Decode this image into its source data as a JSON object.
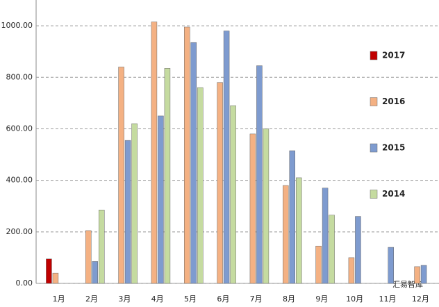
{
  "chart_data": {
    "type": "bar",
    "categories": [
      "1月",
      "2月",
      "3月",
      "4月",
      "5月",
      "6月",
      "7月",
      "8月",
      "9月",
      "10月",
      "11月",
      "12月"
    ],
    "series": [
      {
        "name": "2017",
        "color": "#c00000",
        "values": [
          95,
          null,
          null,
          null,
          null,
          null,
          null,
          null,
          null,
          null,
          null,
          null
        ]
      },
      {
        "name": "2016",
        "color": "#f4b183",
        "values": [
          40,
          205,
          840,
          1015,
          995,
          780,
          580,
          380,
          145,
          100,
          null,
          65
        ]
      },
      {
        "name": "2015",
        "color": "#7e9bcf",
        "values": [
          null,
          85,
          555,
          650,
          935,
          980,
          845,
          515,
          370,
          260,
          140,
          70
        ]
      },
      {
        "name": "2014",
        "color": "#c5dba0",
        "values": [
          null,
          285,
          620,
          835,
          760,
          690,
          600,
          410,
          265,
          null,
          null,
          null
        ]
      }
    ],
    "ylim": [
      0,
      1100
    ],
    "yticks": [
      {
        "value": 0,
        "label": "0.00"
      },
      {
        "value": 200,
        "label": "200.00"
      },
      {
        "value": 400,
        "label": "400.00"
      },
      {
        "value": 600,
        "label": "600.00"
      },
      {
        "value": 800,
        "label": "800.00"
      },
      {
        "value": 1000,
        "label": "1000.00"
      }
    ],
    "grid": true,
    "legend": "right",
    "source_logo": "汇易智库"
  }
}
